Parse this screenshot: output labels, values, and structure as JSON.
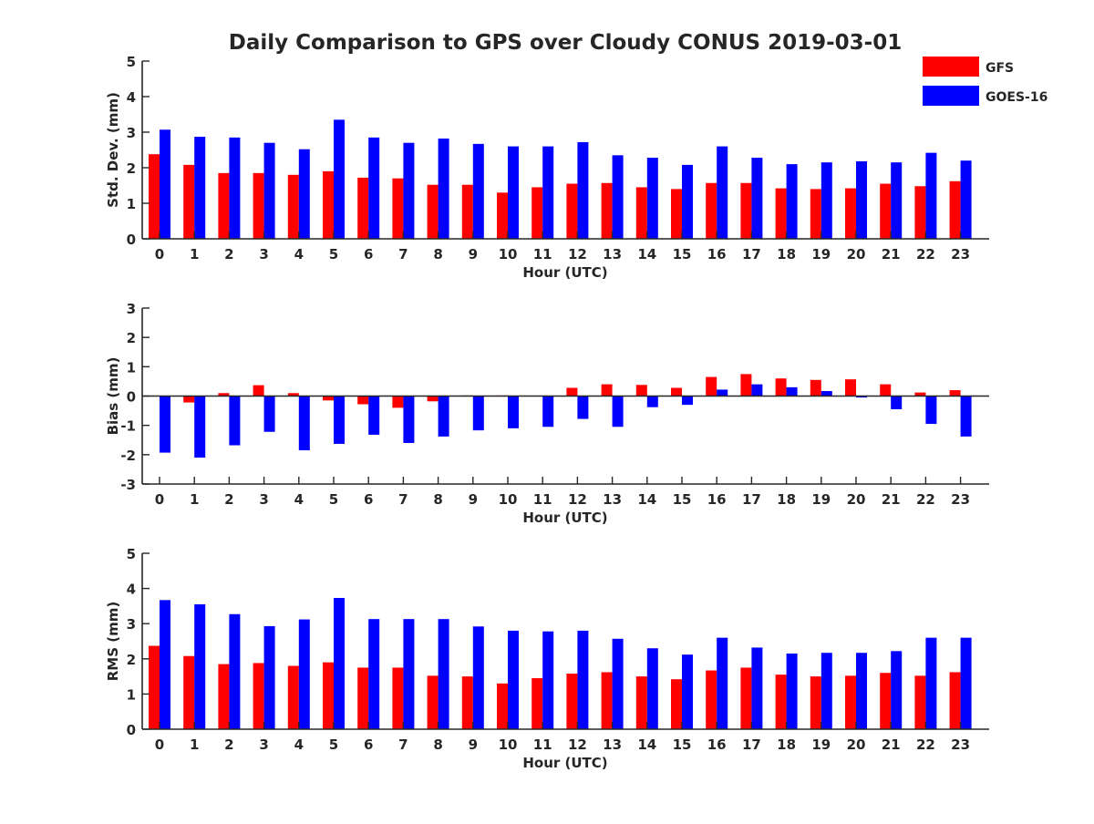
{
  "title": "Daily Comparison to GPS over Cloudy CONUS 2019-03-01",
  "legend": {
    "placement": "top-right",
    "entries": [
      {
        "label": "GFS",
        "color": "#ff0000"
      },
      {
        "label": "GOES-16",
        "color": "#0000ff"
      }
    ]
  },
  "colors": {
    "gfs": "#ff0000",
    "goes16": "#0000ff",
    "axis": "#262626"
  },
  "chart_data": [
    {
      "type": "bar",
      "xlabel": "Hour (UTC)",
      "ylabel": "Std. Dev. (mm)",
      "ylim": [
        0,
        5
      ],
      "yticks": [
        0,
        1,
        2,
        3,
        4,
        5
      ],
      "categories": [
        "0",
        "1",
        "2",
        "3",
        "4",
        "5",
        "6",
        "7",
        "8",
        "9",
        "10",
        "11",
        "12",
        "13",
        "14",
        "15",
        "16",
        "17",
        "18",
        "19",
        "20",
        "21",
        "22",
        "23"
      ],
      "series": [
        {
          "name": "GFS",
          "values": [
            2.38,
            2.08,
            1.85,
            1.85,
            1.8,
            1.9,
            1.72,
            1.7,
            1.52,
            1.52,
            1.3,
            1.45,
            1.55,
            1.57,
            1.45,
            1.4,
            1.57,
            1.57,
            1.42,
            1.4,
            1.42,
            1.55,
            1.48,
            1.62
          ]
        },
        {
          "name": "GOES-16",
          "values": [
            3.07,
            2.87,
            2.85,
            2.7,
            2.52,
            3.35,
            2.85,
            2.7,
            2.82,
            2.67,
            2.6,
            2.6,
            2.72,
            2.35,
            2.28,
            2.08,
            2.6,
            2.28,
            2.1,
            2.15,
            2.18,
            2.15,
            2.42,
            2.2
          ]
        }
      ]
    },
    {
      "type": "bar",
      "xlabel": "Hour (UTC)",
      "ylabel": "Bias (mm)",
      "ylim": [
        -3,
        3
      ],
      "yticks": [
        -3,
        -2,
        -1,
        0,
        1,
        2,
        3
      ],
      "zero_line": true,
      "categories": [
        "0",
        "1",
        "2",
        "3",
        "4",
        "5",
        "6",
        "7",
        "8",
        "9",
        "10",
        "11",
        "12",
        "13",
        "14",
        "15",
        "16",
        "17",
        "18",
        "19",
        "20",
        "21",
        "22",
        "23"
      ],
      "series": [
        {
          "name": "GFS",
          "values": [
            0.0,
            -0.22,
            0.1,
            0.37,
            0.1,
            -0.15,
            -0.28,
            -0.4,
            -0.18,
            0.02,
            0.02,
            0.0,
            0.28,
            0.4,
            0.38,
            0.28,
            0.65,
            0.75,
            0.6,
            0.55,
            0.57,
            0.4,
            0.12,
            0.2
          ]
        },
        {
          "name": "GOES-16",
          "values": [
            -1.93,
            -2.1,
            -1.68,
            -1.22,
            -1.85,
            -1.63,
            -1.32,
            -1.6,
            -1.38,
            -1.17,
            -1.1,
            -1.05,
            -0.78,
            -1.05,
            -0.38,
            -0.3,
            0.22,
            0.4,
            0.3,
            0.17,
            -0.05,
            -0.45,
            -0.95,
            -1.38
          ]
        }
      ]
    },
    {
      "type": "bar",
      "xlabel": "Hour (UTC)",
      "ylabel": "RMS (mm)",
      "ylim": [
        0,
        5
      ],
      "yticks": [
        0,
        1,
        2,
        3,
        4,
        5
      ],
      "categories": [
        "0",
        "1",
        "2",
        "3",
        "4",
        "5",
        "6",
        "7",
        "8",
        "9",
        "10",
        "11",
        "12",
        "13",
        "14",
        "15",
        "16",
        "17",
        "18",
        "19",
        "20",
        "21",
        "22",
        "23"
      ],
      "series": [
        {
          "name": "GFS",
          "values": [
            2.37,
            2.08,
            1.85,
            1.88,
            1.8,
            1.9,
            1.75,
            1.75,
            1.52,
            1.5,
            1.3,
            1.45,
            1.58,
            1.62,
            1.5,
            1.42,
            1.67,
            1.75,
            1.55,
            1.5,
            1.52,
            1.6,
            1.52,
            1.62
          ]
        },
        {
          "name": "GOES-16",
          "values": [
            3.67,
            3.55,
            3.27,
            2.93,
            3.12,
            3.73,
            3.13,
            3.13,
            3.13,
            2.92,
            2.8,
            2.78,
            2.8,
            2.57,
            2.3,
            2.12,
            2.6,
            2.32,
            2.15,
            2.17,
            2.17,
            2.22,
            2.6,
            2.6
          ]
        }
      ]
    }
  ]
}
